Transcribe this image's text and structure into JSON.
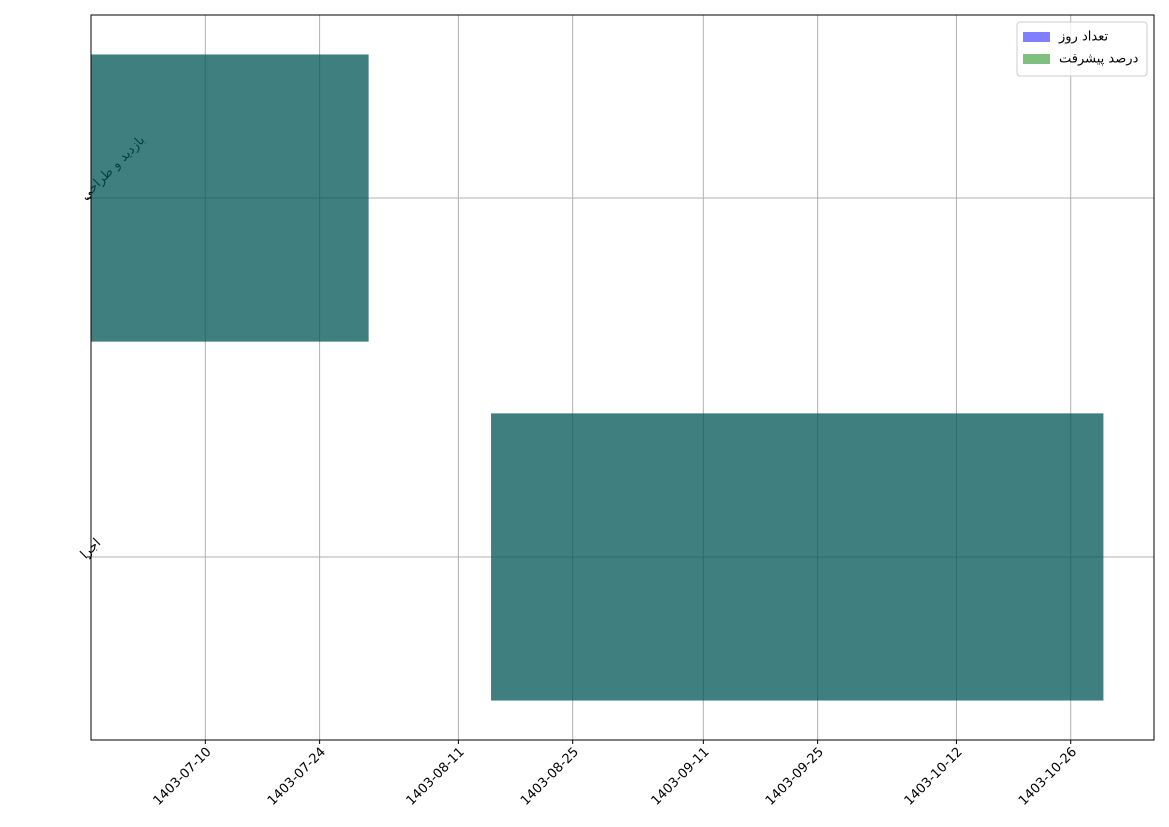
{
  "chart_data": {
    "type": "gantt",
    "categories": [
      "بازدید و طراحی",
      "اجرا"
    ],
    "series": [
      {
        "name": "تعداد روز",
        "color": "#0000ff",
        "alpha": 0.5,
        "starts": [
          182,
          231
        ],
        "values": [
          34,
          75
        ]
      },
      {
        "name": "درصد پیشرفت",
        "color": "#008000",
        "alpha": 0.5,
        "starts": [
          182,
          231
        ],
        "values": [
          34,
          75
        ]
      }
    ],
    "xlim": [
      182,
      312.2
    ],
    "xticks": [
      {
        "value": 196,
        "label": "1403-07-10"
      },
      {
        "value": 210,
        "label": "1403-07-24"
      },
      {
        "value": 227,
        "label": "1403-08-11"
      },
      {
        "value": 241,
        "label": "1403-08-25"
      },
      {
        "value": 257,
        "label": "1403-09-11"
      },
      {
        "value": 271,
        "label": "1403-09-25"
      },
      {
        "value": 288,
        "label": "1403-10-12"
      },
      {
        "value": 302,
        "label": "1403-10-26"
      }
    ],
    "grid": true,
    "legend": "upper right"
  }
}
